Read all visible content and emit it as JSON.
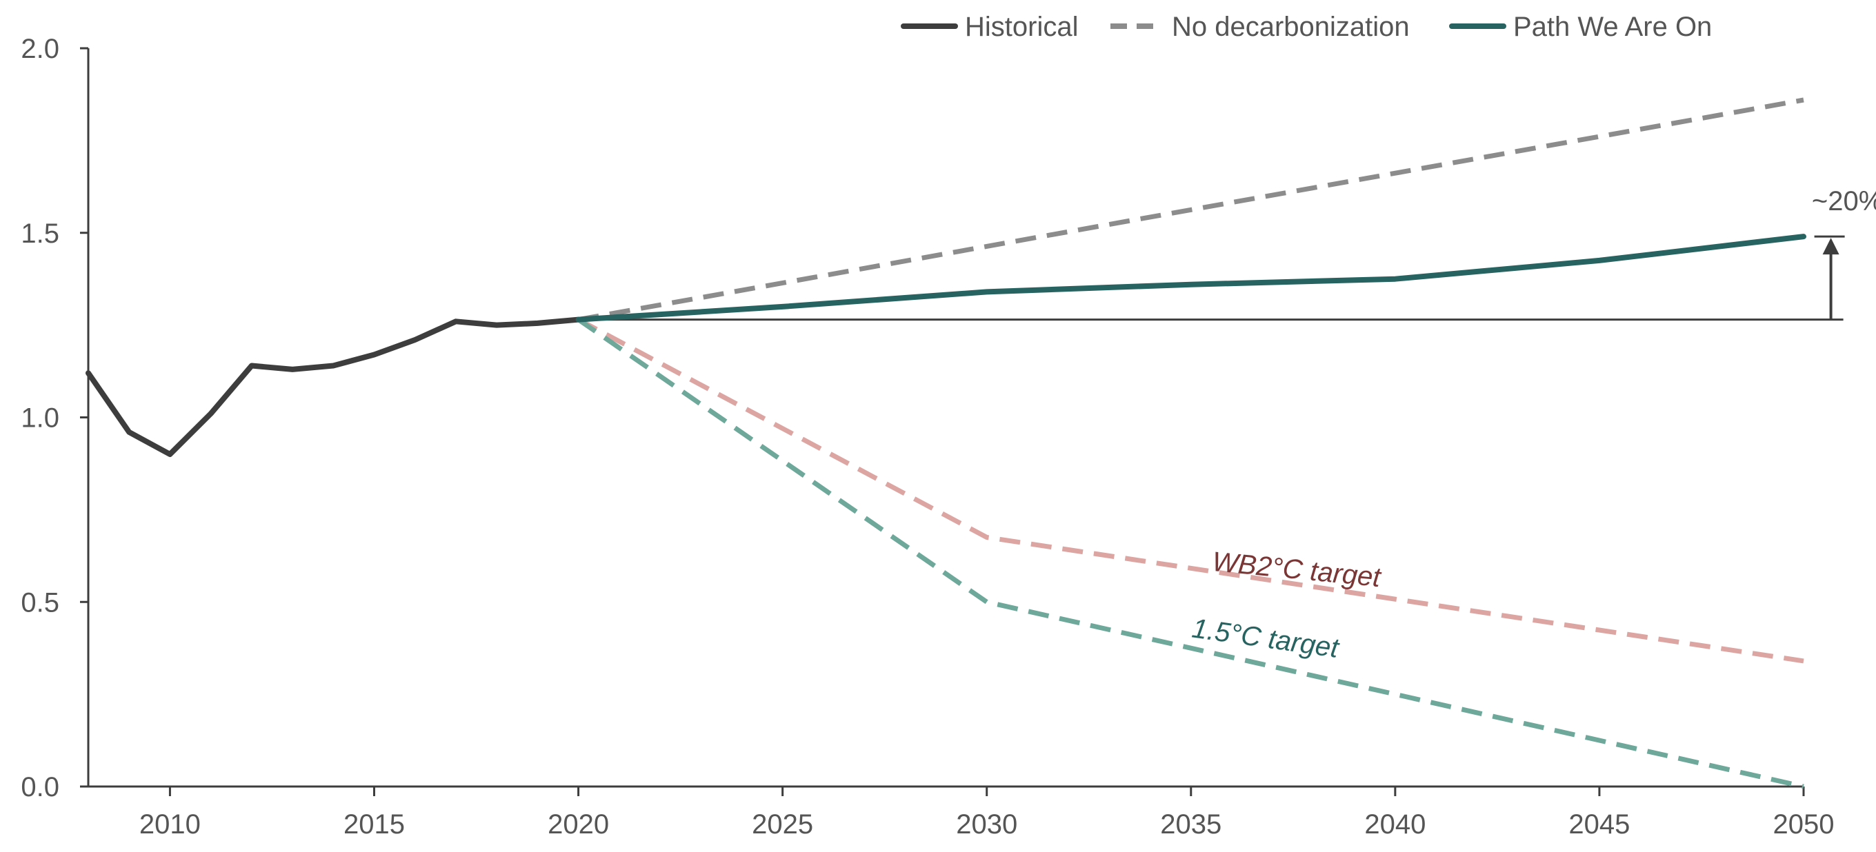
{
  "chart_data": {
    "type": "line",
    "title": "",
    "xlabel": "",
    "ylabel": "",
    "xlim": [
      2008,
      2050
    ],
    "ylim": [
      0,
      2.0
    ],
    "grid": false,
    "legend_position": "top",
    "x_ticks": [
      "2010",
      "2015",
      "2020",
      "2025",
      "2030",
      "2035",
      "2040",
      "2045",
      "2050"
    ],
    "y_ticks": [
      "0.0",
      "0.5",
      "1.0",
      "1.5",
      "2.0"
    ],
    "series": [
      {
        "name": "Historical",
        "color": "#3d3d3d",
        "style": "solid",
        "x": [
          2008,
          2009,
          2010,
          2011,
          2012,
          2013,
          2014,
          2015,
          2016,
          2017,
          2018,
          2019,
          2020
        ],
        "y": [
          1.12,
          0.96,
          0.9,
          1.01,
          1.14,
          1.13,
          1.14,
          1.17,
          1.21,
          1.26,
          1.25,
          1.255,
          1.265
        ]
      },
      {
        "name": "No decarbonization",
        "color": "#8c8c8c",
        "style": "dashed",
        "x": [
          2020,
          2050
        ],
        "y": [
          1.265,
          1.86
        ]
      },
      {
        "name": "Path We Are On",
        "color": "#276360",
        "style": "solid",
        "x": [
          2020,
          2025,
          2030,
          2035,
          2040,
          2045,
          2050
        ],
        "y": [
          1.265,
          1.3,
          1.34,
          1.36,
          1.375,
          1.425,
          1.49
        ]
      }
    ],
    "targets": [
      {
        "label": "WB2°C target",
        "color": "#dda5a2",
        "label_color": "#7a3535",
        "style": "dashed",
        "x": [
          2020,
          2030,
          2050
        ],
        "y": [
          1.265,
          0.675,
          0.34
        ]
      },
      {
        "label": "1.5°C target",
        "color": "#6da89a",
        "label_color": "#276360",
        "style": "dashed",
        "x": [
          2020,
          2030,
          2050
        ],
        "y": [
          1.265,
          0.5,
          0.0
        ]
      }
    ],
    "annotations": [
      {
        "text": "~20%",
        "baseline_y": 1.265,
        "top_y": 1.49,
        "x": 2050.5
      }
    ]
  }
}
